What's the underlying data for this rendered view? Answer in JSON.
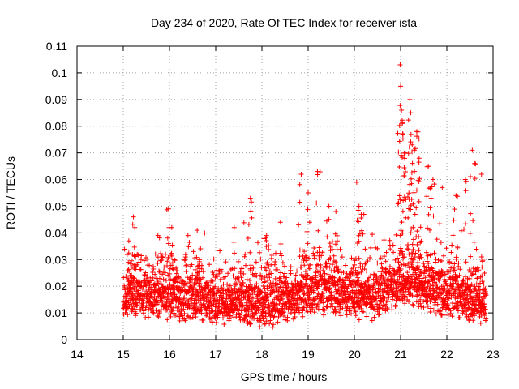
{
  "chart_data": {
    "type": "scatter",
    "title": "Day 234 of 2020, Rate Of TEC Index for receiver ista",
    "xlabel": "GPS time / hours",
    "ylabel": "ROTI / TECUs",
    "xlim": [
      14,
      23
    ],
    "ylim": [
      0,
      0.11
    ],
    "xticks": [
      "14",
      "15",
      "16",
      "17",
      "18",
      "19",
      "20",
      "21",
      "22",
      "23"
    ],
    "yticks": [
      "0",
      "0.01",
      "0.02",
      "0.03",
      "0.04",
      "0.05",
      "0.06",
      "0.07",
      "0.08",
      "0.09",
      "0.1",
      "0.11"
    ],
    "grid": true,
    "marker": "+",
    "marker_color": "#ff0000",
    "x_start": 15.0,
    "x_end": 22.85,
    "sample_step_hours": 0.0028,
    "baseline": [
      [
        15.0,
        0.015
      ],
      [
        15.5,
        0.016
      ],
      [
        16.0,
        0.016
      ],
      [
        16.5,
        0.015
      ],
      [
        17.0,
        0.014
      ],
      [
        17.5,
        0.014
      ],
      [
        18.0,
        0.013
      ],
      [
        18.5,
        0.014
      ],
      [
        19.0,
        0.017
      ],
      [
        19.5,
        0.018
      ],
      [
        20.0,
        0.016
      ],
      [
        20.5,
        0.016
      ],
      [
        21.0,
        0.021
      ],
      [
        21.5,
        0.02
      ],
      [
        22.0,
        0.016
      ],
      [
        22.5,
        0.015
      ],
      [
        22.85,
        0.014
      ]
    ],
    "peaks": [
      {
        "x": 15.22,
        "y": 0.046
      },
      {
        "x": 15.25,
        "y": 0.042
      },
      {
        "x": 15.12,
        "y": 0.037
      },
      {
        "x": 15.75,
        "y": 0.039
      },
      {
        "x": 15.98,
        "y": 0.049
      },
      {
        "x": 16.05,
        "y": 0.042
      },
      {
        "x": 16.4,
        "y": 0.039
      },
      {
        "x": 16.6,
        "y": 0.041
      },
      {
        "x": 17.4,
        "y": 0.042
      },
      {
        "x": 17.7,
        "y": 0.038
      },
      {
        "x": 18.1,
        "y": 0.039
      },
      {
        "x": 18.4,
        "y": 0.044
      },
      {
        "x": 17.75,
        "y": 0.053
      },
      {
        "x": 18.85,
        "y": 0.062
      },
      {
        "x": 19.2,
        "y": 0.063
      },
      {
        "x": 19.0,
        "y": 0.055
      },
      {
        "x": 19.45,
        "y": 0.05
      },
      {
        "x": 19.6,
        "y": 0.048
      },
      {
        "x": 20.05,
        "y": 0.059
      },
      {
        "x": 20.1,
        "y": 0.05
      },
      {
        "x": 20.15,
        "y": 0.047
      },
      {
        "x": 20.99,
        "y": 0.103
      },
      {
        "x": 21.0,
        "y": 0.095
      },
      {
        "x": 21.02,
        "y": 0.086
      },
      {
        "x": 21.05,
        "y": 0.077
      },
      {
        "x": 21.1,
        "y": 0.07
      },
      {
        "x": 21.2,
        "y": 0.09
      },
      {
        "x": 21.22,
        "y": 0.085
      },
      {
        "x": 21.25,
        "y": 0.073
      },
      {
        "x": 21.35,
        "y": 0.078
      },
      {
        "x": 21.4,
        "y": 0.068
      },
      {
        "x": 21.3,
        "y": 0.063
      },
      {
        "x": 21.7,
        "y": 0.06
      },
      {
        "x": 21.6,
        "y": 0.065
      },
      {
        "x": 21.9,
        "y": 0.057
      },
      {
        "x": 22.2,
        "y": 0.054
      },
      {
        "x": 22.4,
        "y": 0.06
      },
      {
        "x": 22.55,
        "y": 0.071
      },
      {
        "x": 22.6,
        "y": 0.066
      },
      {
        "x": 22.75,
        "y": 0.062
      }
    ]
  }
}
